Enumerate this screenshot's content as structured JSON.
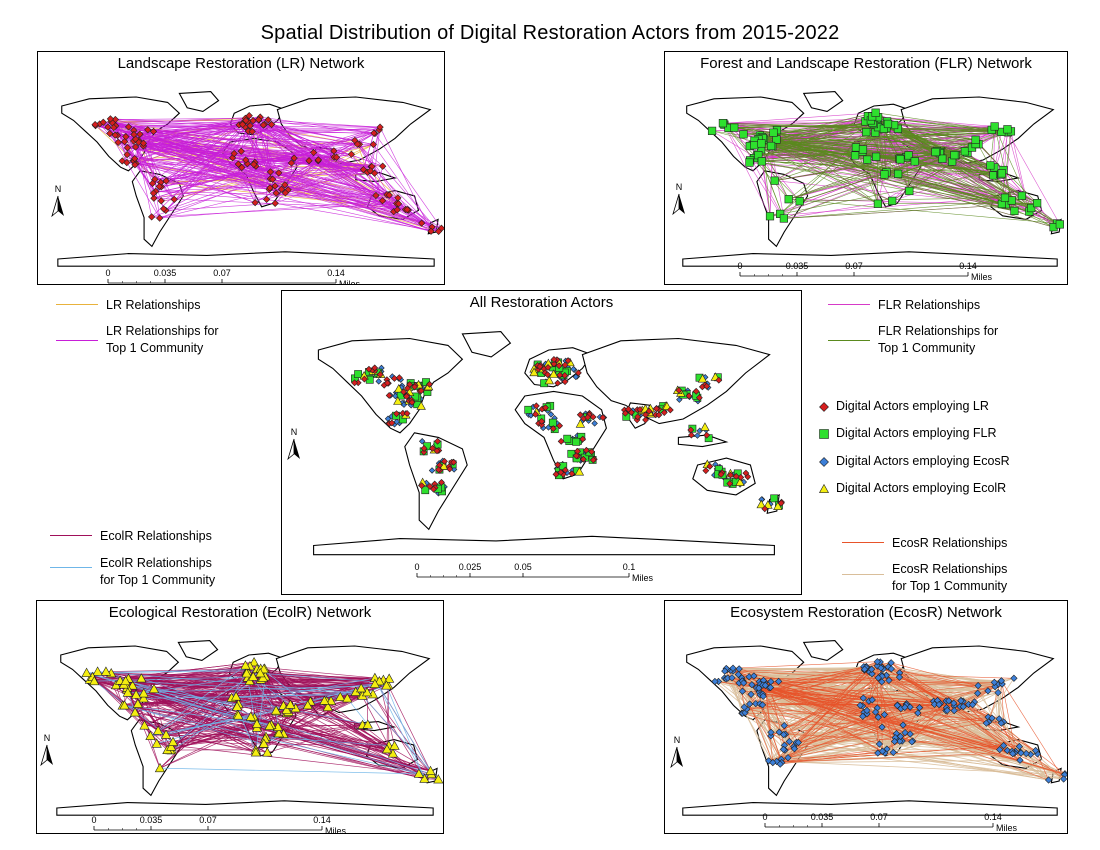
{
  "title": "Spatial Distribution of Digital Restoration Actors from 2015-2022",
  "north_label": "N",
  "colors": {
    "lr_relationships": "#E8B23C",
    "lr_top_community": "#C81ED8",
    "flr_relationships": "#D63AC8",
    "flr_top_community": "#5A8A1E",
    "ecolr_relationships": "#A0105A",
    "ecolr_top_community": "#6FB6E8",
    "ecosr_relationships": "#E8542A",
    "ecosr_top_community": "#D9BE9A",
    "lr_actor": "#D61F1F",
    "flr_actor": "#2EE02E",
    "ecosr_actor": "#3C7FD8",
    "ecolr_actor": "#F4EE10"
  },
  "panels": {
    "lr": {
      "title": "Landscape Restoration (LR) Network",
      "scale": {
        "ticks": [
          "0",
          "0.035",
          "0.07",
          "0.14"
        ],
        "unit": "Miles"
      }
    },
    "flr": {
      "title": "Forest and Landscape Restoration (FLR) Network",
      "scale": {
        "ticks": [
          "0",
          "0.035",
          "0.07",
          "0.14"
        ],
        "unit": "Miles"
      }
    },
    "all": {
      "title": "All Restoration Actors",
      "scale": {
        "ticks": [
          "0",
          "0.025",
          "0.05",
          "0.1"
        ],
        "unit": "Miles"
      }
    },
    "ecolr": {
      "title": "Ecological Restoration (EcolR) Network",
      "scale": {
        "ticks": [
          "0",
          "0.035",
          "0.07",
          "0.14"
        ],
        "unit": "Miles"
      }
    },
    "ecosr": {
      "title": "Ecosystem Restoration (EcosR) Network",
      "scale": {
        "ticks": [
          "0",
          "0.035",
          "0.07",
          "0.14"
        ],
        "unit": "Miles"
      }
    }
  },
  "legends": {
    "lr": {
      "relationships": "LR Relationships",
      "top_line1": "LR Relationships for",
      "top_line2": "Top 1 Community"
    },
    "flr": {
      "relationships": "FLR Relationships",
      "top_line1": "FLR Relationships for",
      "top_line2": "Top 1 Community"
    },
    "ecolr": {
      "relationships": "EcolR Relationships",
      "top_line1": "EcolR Relationships",
      "top_line2": "for Top 1 Community"
    },
    "ecosr": {
      "relationships": "EcosR Relationships",
      "top_line1": "EcosR Relationships",
      "top_line2": "for Top 1 Community"
    },
    "actors": [
      {
        "label": "Digital Actors employing LR",
        "symbol": "diamond",
        "color_key": "lr_actor"
      },
      {
        "label": "Digital Actors employing FLR",
        "symbol": "square",
        "color_key": "flr_actor"
      },
      {
        "label": "Digital Actors employing EcosR",
        "symbol": "diamond",
        "color_key": "ecosr_actor"
      },
      {
        "label": "Digital Actors employing EcolR",
        "symbol": "triangle",
        "color_key": "ecolr_actor"
      }
    ]
  }
}
